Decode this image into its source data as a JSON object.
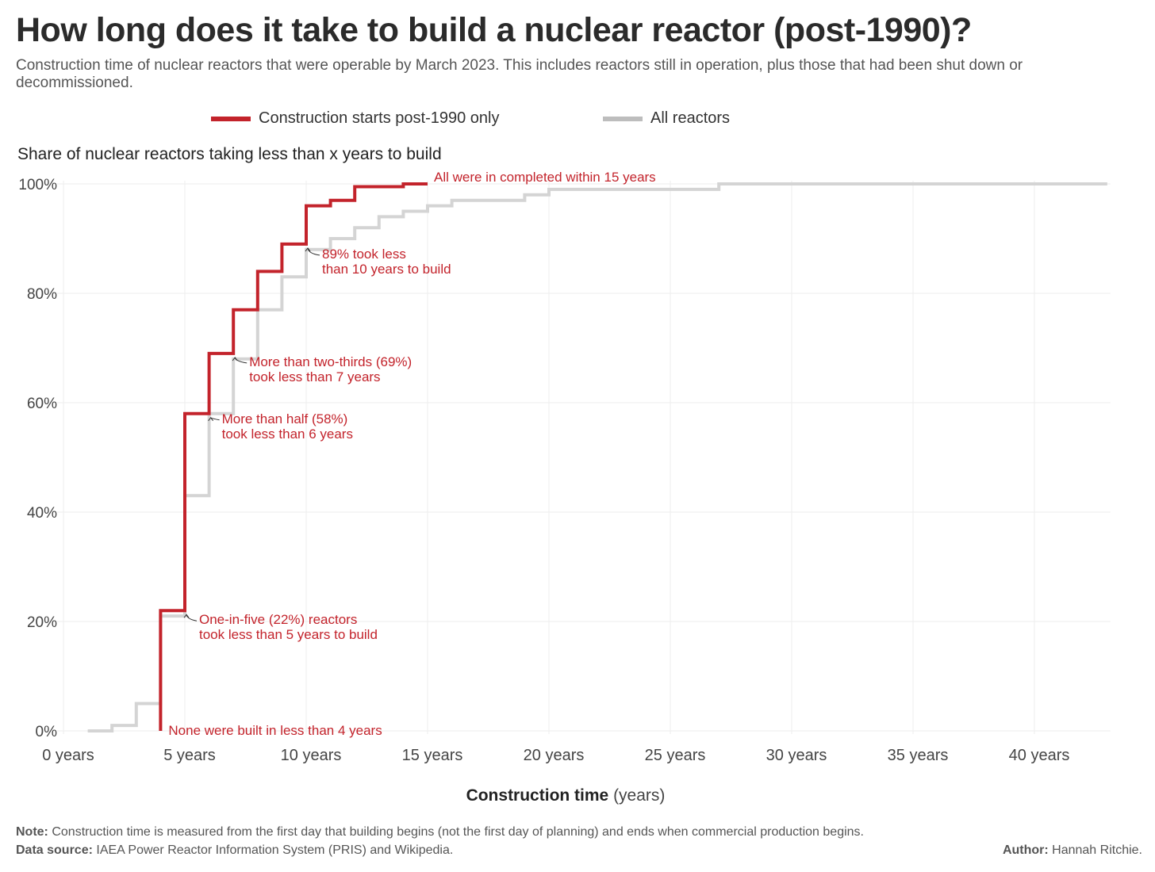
{
  "title": "How long does it take to build a nuclear reactor (post-1990)?",
  "subtitle": "Construction time of nuclear reactors that were operable by March 2023. This includes reactors still in operation, plus those that had been shut down or decommissioned.",
  "footer": {
    "note_label": "Note:",
    "note_text": " Construction time is measured from the first day that building begins (not the first day of planning) and ends when commercial production begins.",
    "source_label": "Data source:",
    "source_text": " IAEA Power Reactor Information System (PRIS) and Wikipedia.",
    "author_label": "Author:",
    "author_text": " Hannah Ritchie."
  },
  "chart_data": {
    "type": "line",
    "step": true,
    "title": "Share of nuclear reactors taking less than x years to build",
    "xlabel_bold": "Construction time",
    "xlabel_unit": " (years)",
    "xlim": [
      0,
      43
    ],
    "ylim": [
      0,
      100
    ],
    "x_ticks": [
      0,
      5,
      10,
      15,
      20,
      25,
      30,
      35,
      40
    ],
    "x_tick_labels": [
      "0 years",
      "5 years",
      "10 years",
      "15 years",
      "20 years",
      "25 years",
      "30 years",
      "35 years",
      "40 years"
    ],
    "y_ticks": [
      0,
      20,
      40,
      60,
      80,
      100
    ],
    "y_tick_labels": [
      "0%",
      "20%",
      "40%",
      "60%",
      "80%",
      "100%"
    ],
    "grid": true,
    "legend_position": "top-center",
    "series": [
      {
        "name": "All reactors",
        "color": "#d4d4d4",
        "x": [
          1,
          2,
          3,
          4,
          5,
          6,
          7,
          8,
          9,
          10,
          11,
          12,
          13,
          14,
          15,
          16,
          18,
          19,
          20,
          21,
          22,
          27,
          43
        ],
        "y": [
          0,
          1,
          5,
          21,
          43,
          58,
          68,
          77,
          83,
          88,
          90,
          92,
          94,
          95,
          96,
          97,
          97,
          98,
          99,
          99,
          99,
          100,
          100
        ]
      },
      {
        "name": "Construction starts post-1990 only",
        "color": "#c3232b",
        "x": [
          4,
          5,
          6,
          7,
          8,
          9,
          10,
          11,
          12,
          13,
          14,
          15
        ],
        "y": [
          22,
          58,
          69,
          77,
          84,
          89,
          96,
          97,
          99.5,
          99.5,
          100,
          100
        ]
      }
    ],
    "annotations": [
      {
        "text": [
          "All were in completed within 15 years"
        ],
        "x": 15,
        "y": 100
      },
      {
        "text": [
          "89% took less",
          "than 10 years to build"
        ],
        "x": 10,
        "y": 89
      },
      {
        "text": [
          "More than two-thirds (69%)",
          "took less than 7 years"
        ],
        "x": 7,
        "y": 69
      },
      {
        "text": [
          "More than half (58%)",
          "took less than 6 years"
        ],
        "x": 6,
        "y": 58
      },
      {
        "text": [
          "One-in-five (22%) reactors",
          "took less than 5 years to build"
        ],
        "x": 5,
        "y": 22
      },
      {
        "text": [
          "None were built in less than 4 years"
        ],
        "x": 4,
        "y": 0
      }
    ]
  }
}
